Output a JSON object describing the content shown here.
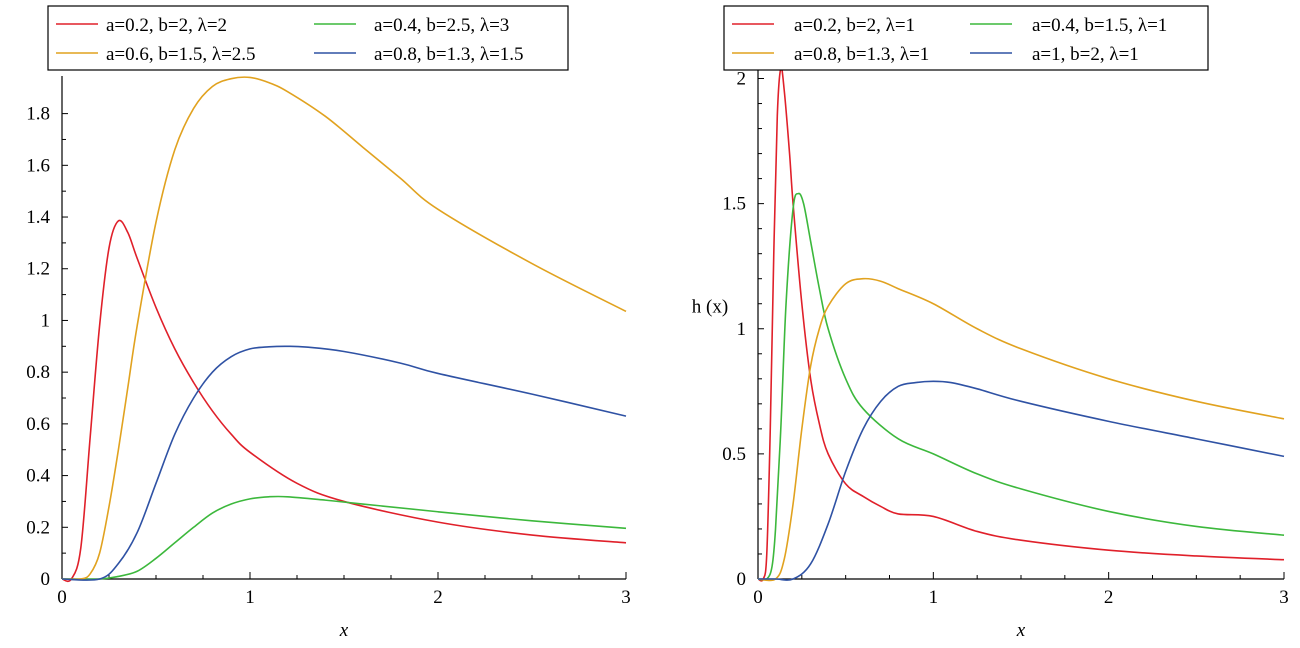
{
  "chart_data": [
    {
      "type": "line",
      "xlabel": "x",
      "ylabel": "",
      "xlim": [
        0,
        3
      ],
      "ylim": [
        0,
        1.93
      ],
      "xticks": [
        0,
        1,
        2,
        3
      ],
      "yticks": [
        0,
        0.2,
        0.4,
        0.6,
        0.8,
        1,
        1.2,
        1.4,
        1.6,
        1.8
      ],
      "ytick_labels": [
        "0",
        "0.2",
        "0.4",
        "0.6",
        "0.8",
        "1",
        "1.2",
        "1.4",
        "1.6",
        "1.8"
      ],
      "xtick_labels": [
        "0",
        "1",
        "2",
        "3"
      ],
      "grid": false,
      "legend_position": "top",
      "series": [
        {
          "name": "a=0.2, b=2, λ=2",
          "color": "#e0202a",
          "x": [
            0,
            0.05,
            0.1,
            0.15,
            0.2,
            0.25,
            0.3,
            0.35,
            0.4,
            0.5,
            0.6,
            0.7,
            0.8,
            0.9,
            1.0,
            1.25,
            1.5,
            2.0,
            2.5,
            3.0
          ],
          "y": [
            0,
            0.0,
            0.12,
            0.55,
            0.98,
            1.28,
            1.385,
            1.34,
            1.24,
            1.05,
            0.89,
            0.76,
            0.65,
            0.56,
            0.49,
            0.37,
            0.3,
            0.22,
            0.17,
            0.14
          ]
        },
        {
          "name": "a=0.4, b=2.5, λ=3",
          "color": "#3cb83c",
          "x": [
            0,
            0.2,
            0.3,
            0.4,
            0.5,
            0.6,
            0.7,
            0.8,
            0.9,
            1.0,
            1.1,
            1.2,
            1.4,
            1.6,
            2.0,
            2.5,
            3.0
          ],
          "y": [
            0,
            0.0,
            0.01,
            0.03,
            0.08,
            0.14,
            0.2,
            0.255,
            0.29,
            0.31,
            0.318,
            0.318,
            0.305,
            0.29,
            0.26,
            0.225,
            0.196
          ]
        },
        {
          "name": "a=0.6, b=1.5, λ=2.5",
          "color": "#e1a21f",
          "x": [
            0,
            0.1,
            0.15,
            0.2,
            0.25,
            0.3,
            0.35,
            0.4,
            0.5,
            0.6,
            0.7,
            0.8,
            0.9,
            1.0,
            1.1,
            1.2,
            1.4,
            1.6,
            1.8,
            2.0,
            2.5,
            3.0
          ],
          "y": [
            0,
            0.0,
            0.02,
            0.1,
            0.28,
            0.5,
            0.74,
            0.98,
            1.38,
            1.66,
            1.82,
            1.905,
            1.935,
            1.94,
            1.92,
            1.885,
            1.79,
            1.67,
            1.55,
            1.43,
            1.22,
            1.035
          ]
        },
        {
          "name": "a=0.8, b=1.3, λ=1.5",
          "color": "#2f52a4",
          "x": [
            0,
            0.2,
            0.3,
            0.4,
            0.5,
            0.6,
            0.7,
            0.8,
            0.9,
            1.0,
            1.1,
            1.2,
            1.3,
            1.5,
            1.8,
            2.0,
            2.5,
            3.0
          ],
          "y": [
            0,
            0.0,
            0.06,
            0.18,
            0.37,
            0.56,
            0.7,
            0.8,
            0.86,
            0.89,
            0.898,
            0.9,
            0.897,
            0.88,
            0.835,
            0.795,
            0.715,
            0.63
          ]
        }
      ]
    },
    {
      "type": "line",
      "xlabel": "x",
      "ylabel": "h (x)",
      "xlim": [
        0,
        3
      ],
      "ylim": [
        0,
        2.05
      ],
      "xticks": [
        0,
        1,
        2,
        3
      ],
      "yticks": [
        0,
        0.5,
        1,
        1.5,
        2
      ],
      "ytick_labels": [
        "0",
        "0.5",
        "1",
        "1.5",
        "2"
      ],
      "xtick_labels": [
        "0",
        "1",
        "2",
        "3"
      ],
      "grid": false,
      "legend_position": "top",
      "series": [
        {
          "name": "a=0.2, b=2, λ=1",
          "color": "#e0202a",
          "x": [
            0,
            0.03,
            0.05,
            0.07,
            0.09,
            0.11,
            0.13,
            0.15,
            0.18,
            0.2,
            0.25,
            0.3,
            0.35,
            0.4,
            0.5,
            0.6,
            0.7,
            0.8,
            1.0,
            1.25,
            1.5,
            2.0,
            2.5,
            3.0
          ],
          "y": [
            0,
            0.0,
            0.1,
            0.6,
            1.3,
            1.85,
            2.04,
            1.95,
            1.7,
            1.5,
            1.1,
            0.8,
            0.62,
            0.5,
            0.38,
            0.33,
            0.29,
            0.26,
            0.25,
            0.19,
            0.155,
            0.115,
            0.092,
            0.077
          ]
        },
        {
          "name": "a=0.4, b=1.5, λ=1",
          "color": "#3cb83c",
          "x": [
            0,
            0.05,
            0.08,
            0.1,
            0.13,
            0.16,
            0.2,
            0.23,
            0.26,
            0.3,
            0.35,
            0.4,
            0.5,
            0.6,
            0.8,
            1.0,
            1.25,
            1.5,
            2.0,
            2.5,
            3.0
          ],
          "y": [
            0,
            0.0,
            0.05,
            0.2,
            0.6,
            1.1,
            1.48,
            1.54,
            1.5,
            1.35,
            1.16,
            1.0,
            0.8,
            0.68,
            0.56,
            0.5,
            0.42,
            0.36,
            0.27,
            0.21,
            0.175
          ]
        },
        {
          "name": "a=0.8, b=1.3, λ=1",
          "color": "#e1a21f",
          "x": [
            0,
            0.1,
            0.15,
            0.2,
            0.25,
            0.3,
            0.35,
            0.4,
            0.5,
            0.6,
            0.7,
            0.8,
            1.0,
            1.25,
            1.5,
            2.0,
            2.5,
            3.0
          ],
          "y": [
            0,
            0.0,
            0.08,
            0.3,
            0.6,
            0.85,
            1.0,
            1.09,
            1.18,
            1.2,
            1.19,
            1.16,
            1.1,
            1.0,
            0.92,
            0.8,
            0.71,
            0.64
          ]
        },
        {
          "name": "a=1, b=2, λ=1",
          "color": "#2f52a4",
          "x": [
            0,
            0.1,
            0.2,
            0.3,
            0.4,
            0.5,
            0.6,
            0.7,
            0.8,
            0.9,
            1.0,
            1.1,
            1.25,
            1.5,
            2.0,
            2.5,
            3.0
          ],
          "y": [
            0,
            0.0,
            0.0,
            0.06,
            0.22,
            0.43,
            0.6,
            0.71,
            0.77,
            0.785,
            0.79,
            0.785,
            0.76,
            0.71,
            0.63,
            0.56,
            0.49
          ]
        }
      ]
    }
  ]
}
